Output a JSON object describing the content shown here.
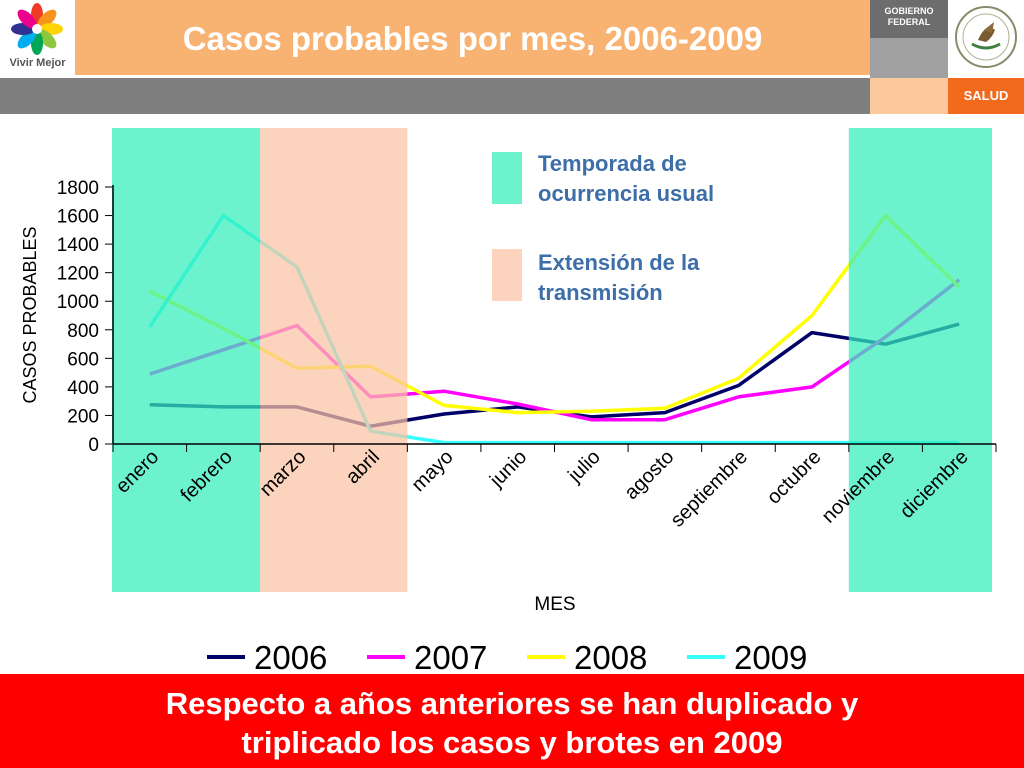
{
  "header": {
    "title": "Casos probables por mes, 2006-2009",
    "logo_caption": "Vivir Mejor",
    "government_label": [
      "GOBIERNO",
      "FEDERAL"
    ],
    "ministry_label": "SALUD"
  },
  "chart_data": {
    "type": "line",
    "categories": [
      "enero",
      "febrero",
      "marzo",
      "abril",
      "mayo",
      "junio",
      "julio",
      "agosto",
      "septiembre",
      "octubre",
      "noviembre",
      "diciembre"
    ],
    "series": [
      {
        "name": "2006",
        "color": "#000066",
        "values": [
          275,
          260,
          260,
          125,
          210,
          260,
          190,
          220,
          410,
          780,
          700,
          840
        ]
      },
      {
        "name": "2007",
        "color": "#ff00ff",
        "values": [
          490,
          660,
          830,
          330,
          370,
          280,
          170,
          170,
          330,
          400,
          750,
          1150
        ]
      },
      {
        "name": "2008",
        "color": "#ffff00",
        "values": [
          1070,
          810,
          530,
          545,
          270,
          220,
          230,
          250,
          460,
          900,
          1600,
          1100
        ]
      },
      {
        "name": "2009",
        "color": "#33ffff",
        "values": [
          820,
          1600,
          1240,
          90,
          10,
          10,
          10,
          10,
          10,
          10,
          10,
          10
        ]
      }
    ],
    "ylim": [
      0,
      1800
    ],
    "yticks": [
      "0",
      "200",
      "400",
      "600",
      "800",
      "1000",
      "1200",
      "1400",
      "1600",
      "1800"
    ],
    "xlabel": "MES",
    "ylabel": "CASOS PROBABLES",
    "grid": false,
    "legend_position": "bottom",
    "bands": [
      {
        "label": [
          "Temporada de",
          "ocurrencia usual"
        ],
        "color": "#33eebb",
        "range": [
          "enero",
          "febrero"
        ]
      },
      {
        "label": [
          "Extensión de la",
          "transmisión"
        ],
        "color": "#fbc4a4",
        "range": [
          "marzo",
          "abril"
        ]
      },
      {
        "color": "#33eebb",
        "range": [
          "noviembre",
          "diciembre"
        ]
      }
    ]
  },
  "footer": {
    "lines": [
      "Respecto a años anteriores se han duplicado y",
      "triplicado los casos y brotes en 2009"
    ]
  },
  "colors": {
    "title_bar": "#f8b272",
    "banner": "#ff0000",
    "annotation_text": "#3d6ea8",
    "season_band": "#33eebb",
    "transmission_band": "#fbc4a4"
  }
}
